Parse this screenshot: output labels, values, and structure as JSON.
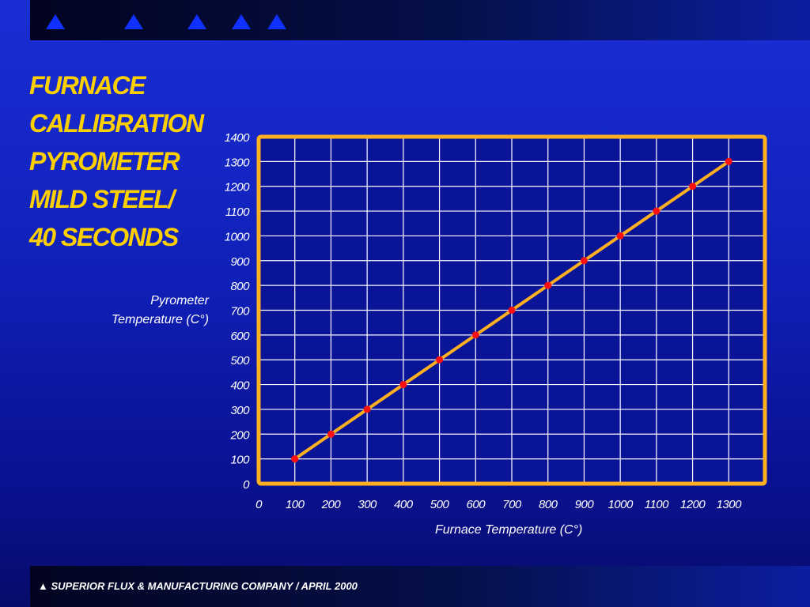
{
  "header": {
    "icons": [
      "triangle-icon",
      "triangle-icon",
      "triangle-icon",
      "triangle-icon",
      "triangle-icon"
    ],
    "icon_color": "#1030ff"
  },
  "title_lines": [
    "FURNACE",
    "CALLIBRATION",
    "PYROMETER",
    "MILD STEEL/",
    "40 SECONDS"
  ],
  "footer": {
    "marker": "▲",
    "text": "SUPERIOR FLUX & MANUFACTURING COMPANY / APRIL 2000"
  },
  "colors": {
    "title": "#ffd000",
    "frame": "#ffb020",
    "line": "#ffb020",
    "points": "#ff1010",
    "grid": "#ffffff"
  },
  "chart_data": {
    "type": "line",
    "xlabel": "Furnace Temperature (C°)",
    "ylabel_lines": [
      "Pyrometer",
      "Temperature (C°)"
    ],
    "x_ticks": [
      0,
      100,
      200,
      300,
      400,
      500,
      600,
      700,
      800,
      900,
      1000,
      1100,
      1200,
      1300
    ],
    "y_ticks": [
      0,
      100,
      200,
      300,
      400,
      500,
      600,
      700,
      800,
      900,
      1000,
      1100,
      1200,
      1300,
      1400
    ],
    "xlim": [
      0,
      1400
    ],
    "ylim": [
      0,
      1400
    ],
    "grid": true,
    "series": [
      {
        "x": [
          100,
          200,
          300,
          400,
          500,
          600,
          700,
          800,
          900,
          1000,
          1100,
          1200,
          1300
        ],
        "values": [
          100,
          200,
          300,
          400,
          500,
          600,
          700,
          800,
          900,
          1000,
          1100,
          1200,
          1300
        ]
      }
    ]
  }
}
